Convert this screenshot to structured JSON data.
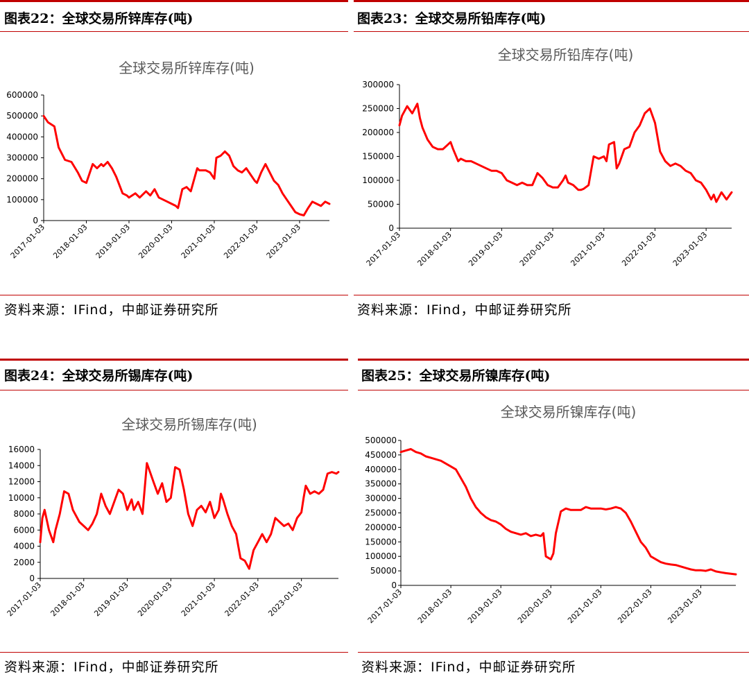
{
  "panels": [
    {
      "figure_label": "图表22：全球交易所锌库存(吨)",
      "source": "资料来源：IFind，中邮证券研究所",
      "chart_data": {
        "type": "line",
        "title": "全球交易所锌库存(吨)",
        "xlabel": "",
        "ylabel": "",
        "ylim": [
          0,
          600000
        ],
        "y_ticks": [
          0,
          100000,
          200000,
          300000,
          400000,
          500000,
          600000
        ],
        "x_tick_labels": [
          "2017-01-03",
          "2018-01-03",
          "2019-01-03",
          "2020-01-03",
          "2021-01-03",
          "2022-01-03",
          "2023-01-03"
        ],
        "xlim": [
          2017.0,
          2023.7
        ],
        "grid": false,
        "line_color": "#ff0000",
        "series": [
          {
            "x": [
              2017.0,
              2017.1,
              2017.25,
              2017.35,
              2017.5,
              2017.65,
              2017.8,
              2017.9,
              2018.0,
              2018.15,
              2018.25,
              2018.35,
              2018.4,
              2018.5,
              2018.6,
              2018.7,
              2018.85,
              2018.95,
              2019.0,
              2019.15,
              2019.25,
              2019.4,
              2019.5,
              2019.6,
              2019.7,
              2019.8,
              2019.9,
              2020.0,
              2020.1,
              2020.15,
              2020.25,
              2020.35,
              2020.45,
              2020.6,
              2020.65,
              2020.8,
              2020.9,
              2021.0,
              2021.05,
              2021.15,
              2021.25,
              2021.35,
              2021.45,
              2021.55,
              2021.65,
              2021.75,
              2021.85,
              2021.95,
              2022.0,
              2022.1,
              2022.2,
              2022.3,
              2022.4,
              2022.5,
              2022.6,
              2022.7,
              2022.8,
              2022.9,
              2023.0,
              2023.1,
              2023.2,
              2023.3,
              2023.4,
              2023.5,
              2023.6,
              2023.7
            ],
            "y": [
              500000,
              470000,
              450000,
              350000,
              290000,
              280000,
              230000,
              190000,
              180000,
              270000,
              250000,
              270000,
              260000,
              280000,
              250000,
              210000,
              130000,
              120000,
              110000,
              130000,
              110000,
              140000,
              120000,
              150000,
              110000,
              100000,
              90000,
              80000,
              70000,
              60000,
              150000,
              160000,
              140000,
              250000,
              240000,
              240000,
              230000,
              200000,
              300000,
              310000,
              330000,
              310000,
              260000,
              240000,
              230000,
              250000,
              220000,
              190000,
              180000,
              230000,
              270000,
              230000,
              190000,
              170000,
              130000,
              100000,
              70000,
              40000,
              30000,
              25000,
              60000,
              90000,
              80000,
              70000,
              90000,
              80000
            ]
          }
        ]
      }
    },
    {
      "figure_label": "图表23：全球交易所铅库存(吨)",
      "source": "资料来源：IFind，中邮证券研究所",
      "chart_data": {
        "type": "line",
        "title": "全球交易所铅库存(吨)",
        "xlabel": "",
        "ylabel": "",
        "ylim": [
          0,
          300000
        ],
        "y_ticks": [
          0,
          50000,
          100000,
          150000,
          200000,
          250000,
          300000
        ],
        "x_tick_labels": [
          "2017-01-03",
          "2018-01-03",
          "2019-01-03",
          "2020-01-03",
          "2021-01-03",
          "2022-01-03",
          "2023-01-03"
        ],
        "xlim": [
          2017.0,
          2023.5
        ],
        "grid": false,
        "line_color": "#ff0000",
        "series": [
          {
            "x": [
              2017.0,
              2017.05,
              2017.15,
              2017.25,
              2017.35,
              2017.4,
              2017.45,
              2017.55,
              2017.65,
              2017.75,
              2017.85,
              2017.95,
              2018.0,
              2018.05,
              2018.15,
              2018.2,
              2018.3,
              2018.4,
              2018.5,
              2018.6,
              2018.7,
              2018.8,
              2018.9,
              2019.0,
              2019.1,
              2019.2,
              2019.3,
              2019.4,
              2019.5,
              2019.6,
              2019.7,
              2019.8,
              2019.9,
              2020.0,
              2020.1,
              2020.2,
              2020.25,
              2020.3,
              2020.4,
              2020.5,
              2020.55,
              2020.6,
              2020.7,
              2020.75,
              2020.8,
              2020.9,
              2021.0,
              2021.05,
              2021.1,
              2021.2,
              2021.25,
              2021.3,
              2021.4,
              2021.5,
              2021.6,
              2021.7,
              2021.8,
              2021.9,
              2022.0,
              2022.1,
              2022.2,
              2022.3,
              2022.4,
              2022.5,
              2022.6,
              2022.7,
              2022.8,
              2022.9,
              2023.0,
              2023.1,
              2023.15,
              2023.2,
              2023.3,
              2023.4,
              2023.5
            ],
            "y": [
              215000,
              235000,
              255000,
              240000,
              260000,
              230000,
              210000,
              185000,
              170000,
              165000,
              165000,
              175000,
              180000,
              165000,
              140000,
              145000,
              140000,
              140000,
              135000,
              130000,
              125000,
              120000,
              120000,
              115000,
              100000,
              95000,
              90000,
              95000,
              90000,
              90000,
              115000,
              105000,
              90000,
              85000,
              85000,
              100000,
              110000,
              95000,
              90000,
              80000,
              80000,
              82000,
              90000,
              120000,
              150000,
              145000,
              150000,
              140000,
              175000,
              180000,
              125000,
              135000,
              165000,
              170000,
              200000,
              215000,
              240000,
              250000,
              220000,
              160000,
              140000,
              130000,
              135000,
              130000,
              120000,
              115000,
              100000,
              95000,
              80000,
              60000,
              70000,
              55000,
              75000,
              60000,
              75000
            ]
          }
        ]
      }
    },
    {
      "figure_label": "图表24：全球交易所锡库存(吨)",
      "source": "资料来源：IFind，中邮证券研究所",
      "chart_data": {
        "type": "line",
        "title": "全球交易所锡库存(吨)",
        "xlabel": "",
        "ylabel": "",
        "ylim": [
          0,
          16000
        ],
        "y_ticks": [
          0,
          2000,
          4000,
          6000,
          8000,
          10000,
          12000,
          14000,
          16000
        ],
        "x_tick_labels": [
          "2017-01-03",
          "2018-01-03",
          "2019-01-03",
          "2020-01-03",
          "2021-01-03",
          "2022-01-03",
          "2023-01-03"
        ],
        "xlim": [
          2017.0,
          2023.85
        ],
        "grid": false,
        "line_color": "#ff0000",
        "series": [
          {
            "x": [
              2017.0,
              2017.05,
              2017.1,
              2017.2,
              2017.3,
              2017.35,
              2017.45,
              2017.55,
              2017.65,
              2017.75,
              2017.9,
              2018.0,
              2018.1,
              2018.2,
              2018.3,
              2018.4,
              2018.5,
              2018.6,
              2018.7,
              2018.8,
              2018.9,
              2019.0,
              2019.1,
              2019.15,
              2019.25,
              2019.35,
              2019.45,
              2019.6,
              2019.7,
              2019.8,
              2019.9,
              2020.0,
              2020.1,
              2020.2,
              2020.3,
              2020.4,
              2020.5,
              2020.6,
              2020.7,
              2020.8,
              2020.9,
              2021.0,
              2021.1,
              2021.15,
              2021.2,
              2021.3,
              2021.4,
              2021.5,
              2021.55,
              2021.6,
              2021.7,
              2021.8,
              2021.9,
              2022.0,
              2022.1,
              2022.2,
              2022.3,
              2022.4,
              2022.5,
              2022.6,
              2022.7,
              2022.8,
              2022.9,
              2023.0,
              2023.05,
              2023.1,
              2023.2,
              2023.3,
              2023.4,
              2023.5,
              2023.6,
              2023.7,
              2023.8,
              2023.85
            ],
            "y": [
              4500,
              7500,
              8500,
              6000,
              4500,
              6000,
              8000,
              10800,
              10500,
              8500,
              7000,
              6500,
              6000,
              6800,
              8000,
              10500,
              9000,
              8000,
              9500,
              11000,
              10500,
              8500,
              9800,
              8500,
              9500,
              8000,
              14300,
              12000,
              10500,
              11800,
              9500,
              10000,
              13800,
              13500,
              11000,
              8000,
              6500,
              8500,
              9000,
              8200,
              9500,
              7500,
              8500,
              10500,
              9800,
              8000,
              6500,
              5500,
              4000,
              2500,
              2200,
              1200,
              3500,
              4500,
              5500,
              4500,
              5500,
              7500,
              7000,
              6500,
              6800,
              6000,
              7500,
              8200,
              10000,
              11500,
              10500,
              10800,
              10500,
              11000,
              13000,
              13200,
              13000,
              13200
            ]
          }
        ]
      }
    },
    {
      "figure_label": "图表25：全球交易所镍库存(吨)",
      "source": "资料来源：IFind，中邮证券研究所",
      "chart_data": {
        "type": "line",
        "title": "全球交易所镍库存(吨)",
        "xlabel": "",
        "ylabel": "",
        "ylim": [
          0,
          500000
        ],
        "y_ticks": [
          0,
          50000,
          100000,
          150000,
          200000,
          250000,
          300000,
          350000,
          400000,
          450000,
          500000
        ],
        "x_tick_labels": [
          "2017-01-03",
          "2018-01-03",
          "2019-01-03",
          "2020-01-03",
          "2021-01-03",
          "2022-01-03",
          "2023-01-03"
        ],
        "xlim": [
          2017.0,
          2023.7
        ],
        "grid": false,
        "line_color": "#ff0000",
        "series": [
          {
            "x": [
              2017.0,
              2017.1,
              2017.2,
              2017.3,
              2017.4,
              2017.5,
              2017.6,
              2017.7,
              2017.8,
              2017.9,
              2018.0,
              2018.1,
              2018.2,
              2018.3,
              2018.4,
              2018.5,
              2018.6,
              2018.7,
              2018.8,
              2018.9,
              2019.0,
              2019.1,
              2019.2,
              2019.3,
              2019.4,
              2019.5,
              2019.6,
              2019.7,
              2019.8,
              2019.85,
              2019.9,
              2020.0,
              2020.05,
              2020.1,
              2020.2,
              2020.3,
              2020.4,
              2020.5,
              2020.6,
              2020.7,
              2020.8,
              2020.9,
              2021.0,
              2021.1,
              2021.2,
              2021.3,
              2021.4,
              2021.5,
              2021.6,
              2021.7,
              2021.8,
              2021.9,
              2022.0,
              2022.1,
              2022.2,
              2022.3,
              2022.4,
              2022.5,
              2022.6,
              2022.7,
              2022.8,
              2022.9,
              2023.0,
              2023.1,
              2023.2,
              2023.3,
              2023.4,
              2023.5,
              2023.6,
              2023.7
            ],
            "y": [
              460000,
              465000,
              470000,
              460000,
              455000,
              445000,
              440000,
              435000,
              430000,
              420000,
              410000,
              400000,
              370000,
              340000,
              300000,
              270000,
              250000,
              235000,
              225000,
              220000,
              210000,
              195000,
              185000,
              180000,
              175000,
              180000,
              170000,
              175000,
              170000,
              180000,
              100000,
              90000,
              110000,
              180000,
              255000,
              265000,
              260000,
              260000,
              260000,
              270000,
              265000,
              265000,
              265000,
              262000,
              265000,
              270000,
              265000,
              250000,
              220000,
              185000,
              150000,
              130000,
              100000,
              90000,
              80000,
              75000,
              72000,
              70000,
              65000,
              60000,
              55000,
              52000,
              52000,
              50000,
              55000,
              48000,
              45000,
              42000,
              40000,
              38000
            ]
          }
        ]
      }
    }
  ]
}
